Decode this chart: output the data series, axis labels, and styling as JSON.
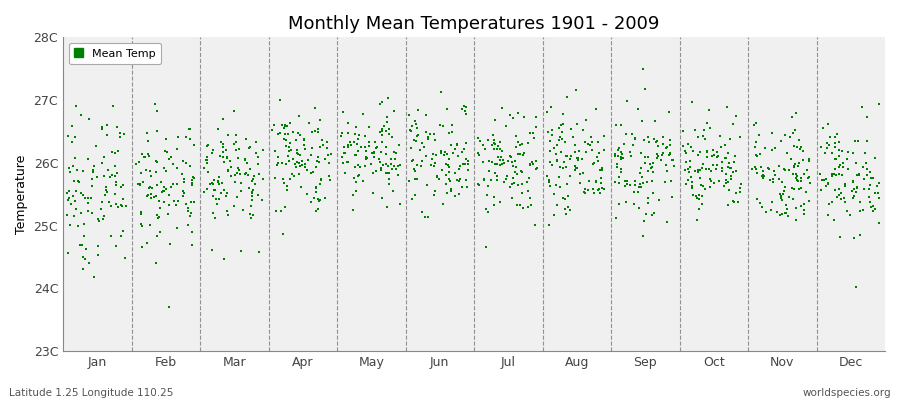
{
  "title": "Monthly Mean Temperatures 1901 - 2009",
  "ylabel": "Temperature",
  "xlabel_months": [
    "Jan",
    "Feb",
    "Mar",
    "Apr",
    "May",
    "Jun",
    "Jul",
    "Aug",
    "Sep",
    "Oct",
    "Nov",
    "Dec"
  ],
  "ylim": [
    23.0,
    28.0
  ],
  "yticks": [
    23,
    24,
    25,
    26,
    27,
    28
  ],
  "ytick_labels": [
    "23C",
    "24C",
    "25C",
    "26C",
    "27C",
    "28C"
  ],
  "dot_color": "#008000",
  "marker": "s",
  "marker_size": 3,
  "background_color": "#F0F0F0",
  "figure_color": "#FFFFFF",
  "legend_label": "Mean Temp",
  "subtitle_left": "Latitude 1.25 Longitude 110.25",
  "subtitle_right": "worldspecies.org",
  "years": 109,
  "monthly_means": [
    25.55,
    25.65,
    25.85,
    26.05,
    26.15,
    26.1,
    25.95,
    26.0,
    26.0,
    25.95,
    25.85,
    25.75
  ],
  "monthly_stds": [
    0.6,
    0.55,
    0.45,
    0.42,
    0.42,
    0.42,
    0.42,
    0.42,
    0.4,
    0.38,
    0.4,
    0.45
  ],
  "seed": 7
}
